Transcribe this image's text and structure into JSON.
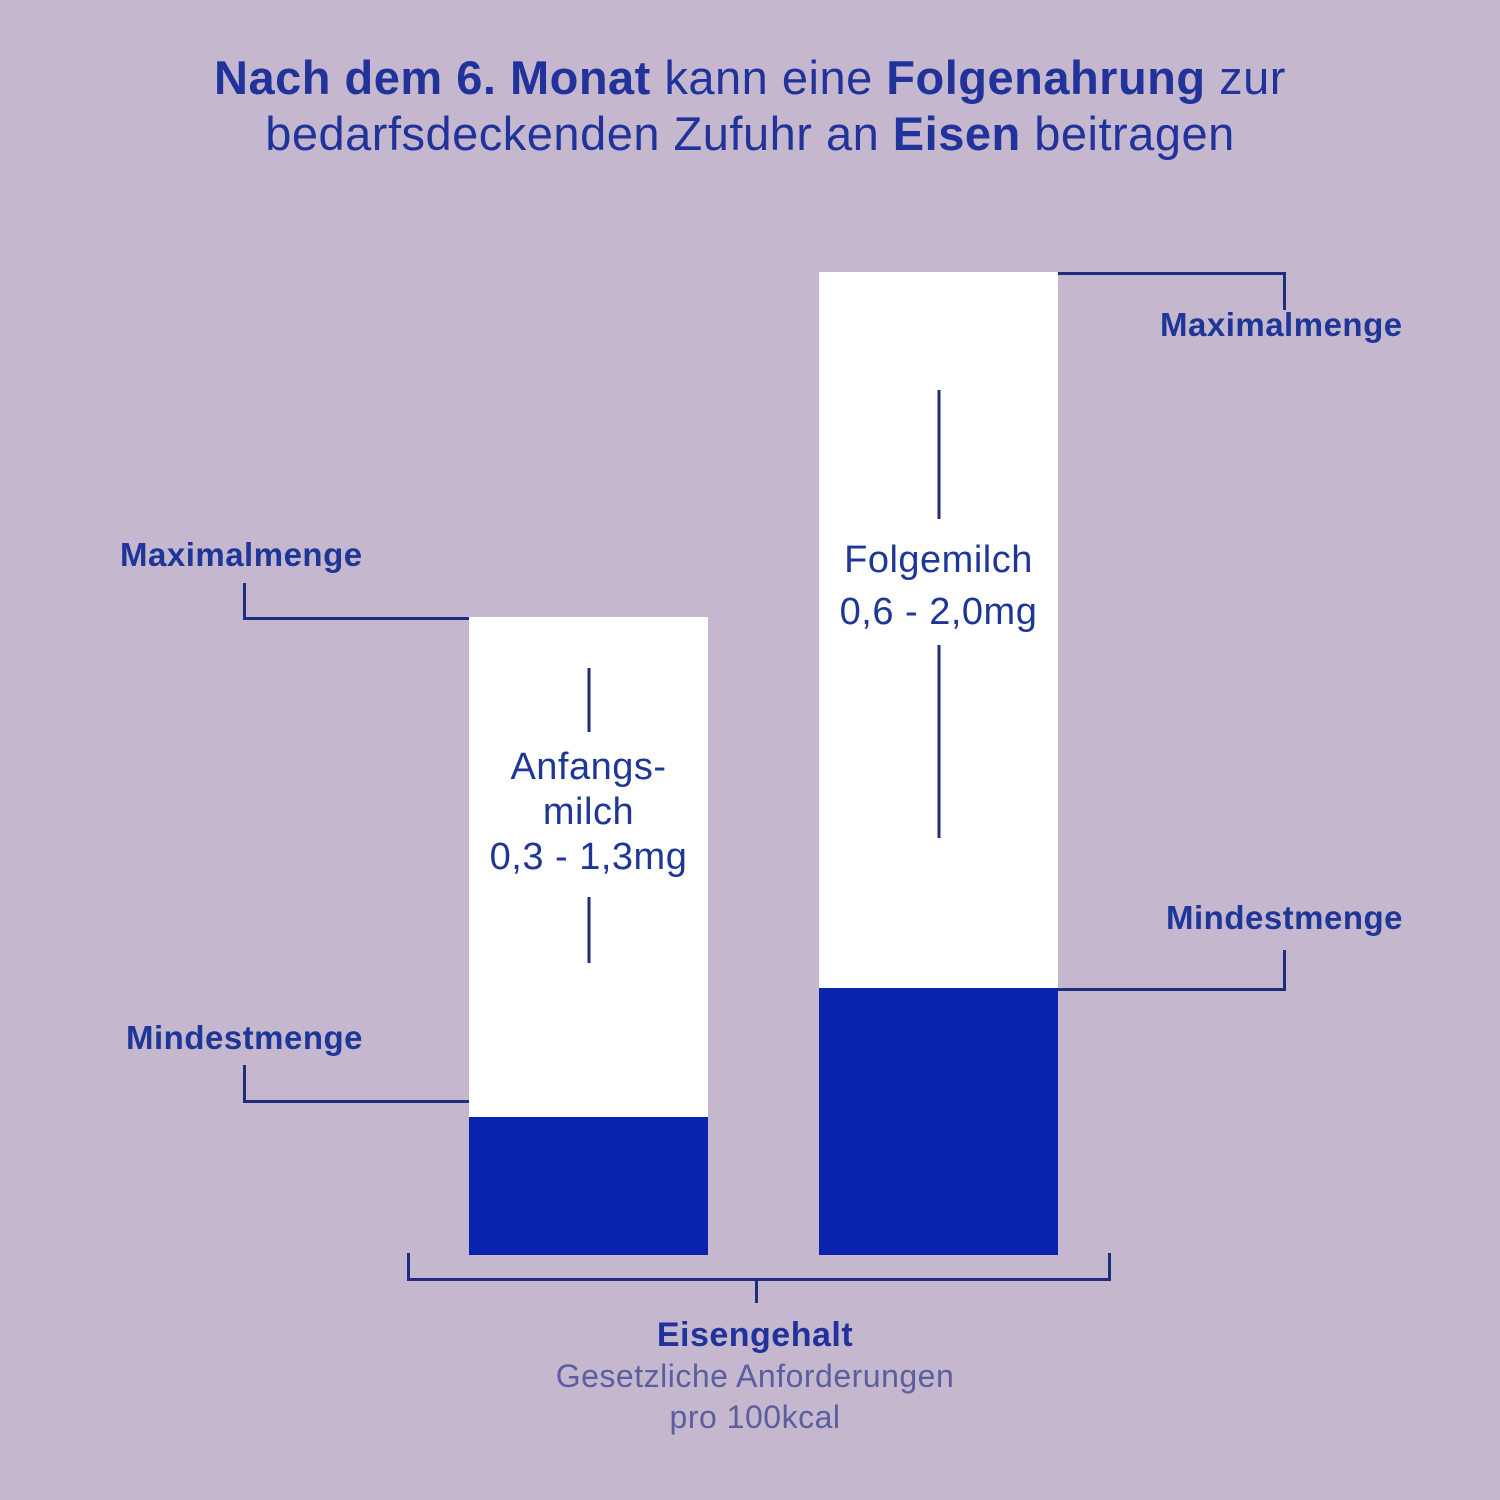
{
  "title": {
    "l1_b1": "Nach dem 6. Monat",
    "l1_r1": " kann eine ",
    "l1_b2": "Folgenahrung",
    "l1_r2": " zur",
    "l2_r1": "bedarfsdeckenden Zufuhr an ",
    "l2_b1": "Eisen",
    "l2_r2": " beitragen"
  },
  "bars": {
    "anfangsmilch": {
      "label_line1": "Anfangs-",
      "label_line2": "milch",
      "label_line3": "0,3 - 1,3mg"
    },
    "folgemilch": {
      "label_line1": "Folgemilch",
      "label_line2": "0,6 - 2,0mg"
    }
  },
  "callouts": {
    "max_left": "Maximalmenge",
    "min_left": "Mindestmenge",
    "max_right": "Maximalmenge",
    "min_right": "Mindestmenge"
  },
  "footer": {
    "heading": "Eisengehalt",
    "sub_line1": "Gesetzliche Anforderungen",
    "sub_line2": "pro 100kcal"
  },
  "colors": {
    "background": "#c4b7ce",
    "bar_white": "#ffffff",
    "bar_blue_fill": "#0a23ac",
    "text_navy": "#21339b",
    "line_navy": "#1e2d7d",
    "text_muted": "#5b5e9f"
  },
  "chart_data": {
    "type": "bar",
    "title": "Nach dem 6. Monat kann eine Folgenahrung zur bedarfsdeckenden Zufuhr an Eisen beitragen",
    "categories": [
      "Anfangsmilch",
      "Folgemilch"
    ],
    "series": [
      {
        "name": "Mindestmenge",
        "values": [
          0.3,
          0.6
        ]
      },
      {
        "name": "Maximalmenge",
        "values": [
          1.3,
          2.0
        ]
      }
    ],
    "value_labels": [
      "0,3 - 1,3mg",
      "0,6 - 2,0mg"
    ],
    "unit": "mg",
    "xlabel": "Eisengehalt — Gesetzliche Anforderungen pro 100kcal",
    "ylim": [
      0,
      2.0
    ],
    "grid": false,
    "legend_position": "none",
    "annotations": [
      "Maximalmenge = Balkenoberkante",
      "Mindestmenge = blaue Füllung"
    ]
  }
}
